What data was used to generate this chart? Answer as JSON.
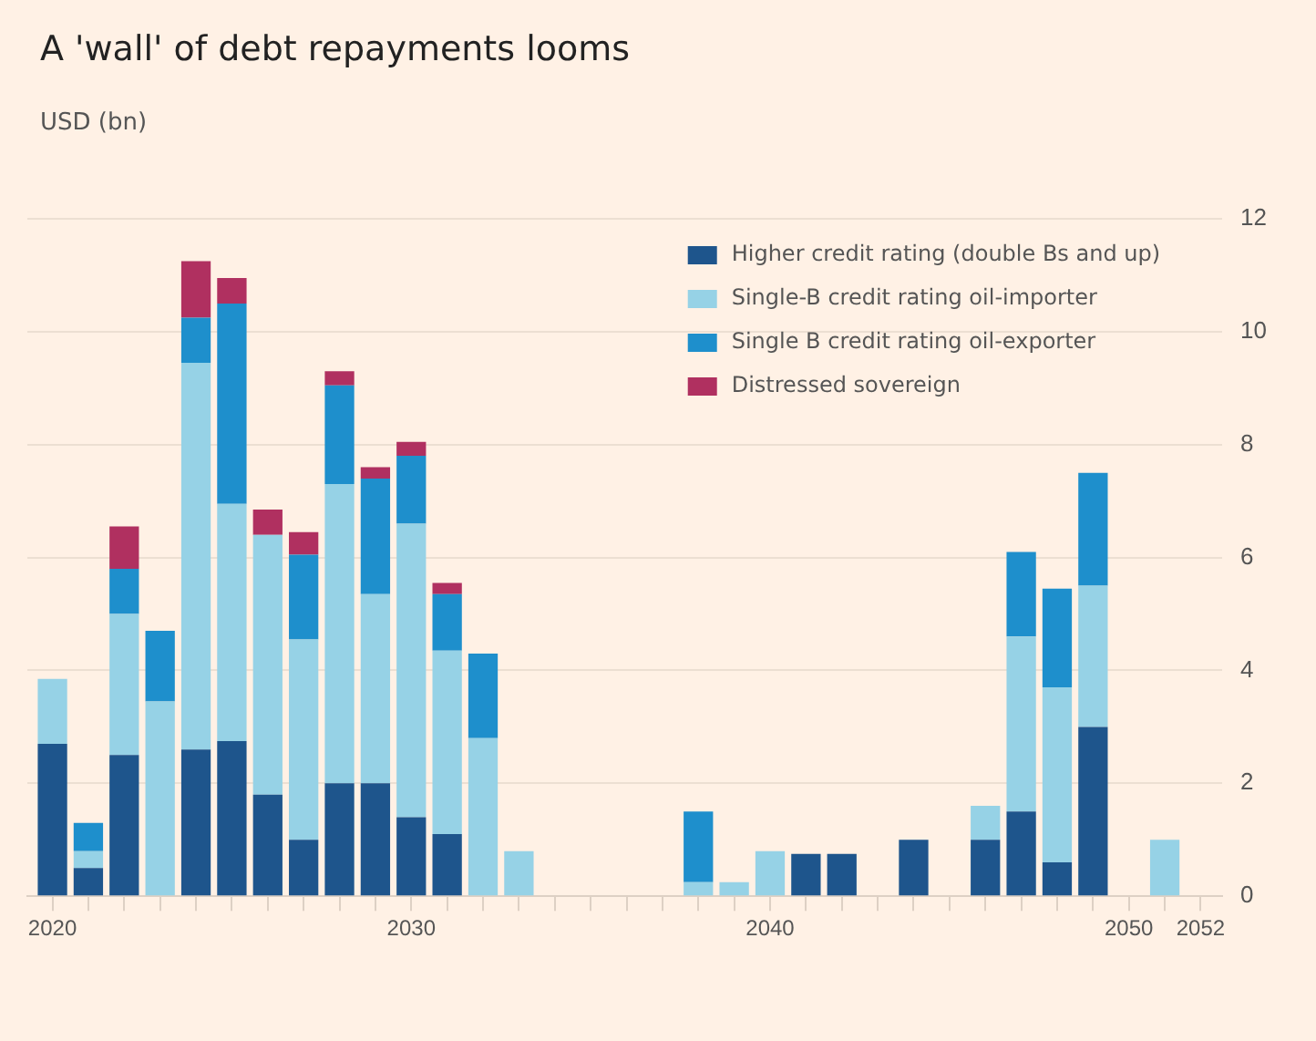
{
  "chart_data": {
    "type": "bar",
    "title": "A 'wall' of debt repayments looms",
    "ylabel": "USD (bn)",
    "x": [
      2020,
      2021,
      2022,
      2023,
      2024,
      2025,
      2026,
      2027,
      2028,
      2029,
      2030,
      2031,
      2032,
      2033,
      2038,
      2039,
      2040,
      2041,
      2042,
      2044,
      2046,
      2047,
      2048,
      2049,
      2051
    ],
    "series": [
      {
        "name": "Higher credit rating (double Bs and up)",
        "color": "#1e558c",
        "values": [
          2.7,
          0.5,
          2.5,
          null,
          2.6,
          2.75,
          1.8,
          1.0,
          2.0,
          2.0,
          1.4,
          1.1,
          null,
          null,
          null,
          null,
          null,
          0.75,
          0.75,
          1.0,
          1.0,
          1.5,
          0.6,
          3.0,
          null
        ]
      },
      {
        "name": "Single-B credit rating oil-importer",
        "color": "#96d2e6",
        "values": [
          1.15,
          0.3,
          2.5,
          3.45,
          6.85,
          4.2,
          4.6,
          3.55,
          5.3,
          3.35,
          5.2,
          3.25,
          2.8,
          0.8,
          0.25,
          0.25,
          0.8,
          null,
          null,
          null,
          0.6,
          3.1,
          3.1,
          2.5,
          1.0
        ]
      },
      {
        "name": "Single B credit rating oil-exporter",
        "color": "#1e8fcc",
        "values": [
          null,
          0.5,
          0.8,
          1.25,
          0.8,
          3.55,
          null,
          1.5,
          1.75,
          2.05,
          1.2,
          1.0,
          1.5,
          null,
          1.25,
          null,
          null,
          null,
          null,
          null,
          null,
          1.5,
          1.75,
          2.0,
          null
        ]
      },
      {
        "name": "Distressed sovereign",
        "color": "#b03060",
        "values": [
          null,
          null,
          0.75,
          null,
          1.0,
          0.45,
          0.45,
          0.4,
          0.25,
          0.2,
          0.25,
          0.2,
          null,
          null,
          null,
          null,
          null,
          null,
          null,
          null,
          null,
          null,
          null,
          null,
          null
        ]
      }
    ],
    "stacked": true,
    "xlim": [
      2019.3,
      2052.6
    ],
    "xticks": [
      2020,
      {
        "value": 2021,
        "label": null
      },
      {
        "value": 2022,
        "label": null
      },
      {
        "value": 2023,
        "label": null
      },
      {
        "value": 2024,
        "label": null
      },
      {
        "value": 2025,
        "label": null
      },
      {
        "value": 2026,
        "label": null
      },
      {
        "value": 2027,
        "label": null
      },
      {
        "value": 2028,
        "label": null
      },
      {
        "value": 2029,
        "label": null
      },
      2030,
      {
        "value": 2031,
        "label": null
      },
      {
        "value": 2032,
        "label": null
      },
      {
        "value": 2033,
        "label": null
      },
      {
        "value": 2034,
        "label": null
      },
      {
        "value": 2035,
        "label": null
      },
      {
        "value": 2036,
        "label": null
      },
      {
        "value": 2037,
        "label": null
      },
      {
        "value": 2038,
        "label": null
      },
      {
        "value": 2039,
        "label": null
      },
      2040,
      {
        "value": 2041,
        "label": null
      },
      {
        "value": 2042,
        "label": null
      },
      {
        "value": 2043,
        "label": null
      },
      {
        "value": 2044,
        "label": null
      },
      {
        "value": 2045,
        "label": null
      },
      {
        "value": 2046,
        "label": null
      },
      {
        "value": 2047,
        "label": null
      },
      {
        "value": 2048,
        "label": null
      },
      {
        "value": 2049,
        "label": null
      },
      2050,
      {
        "value": 2051,
        "label": null
      },
      2052
    ],
    "ylim": [
      0,
      12
    ],
    "yticks": [
      0,
      2,
      4,
      6,
      8,
      10,
      12
    ],
    "grid": "y",
    "legend": "top right"
  }
}
